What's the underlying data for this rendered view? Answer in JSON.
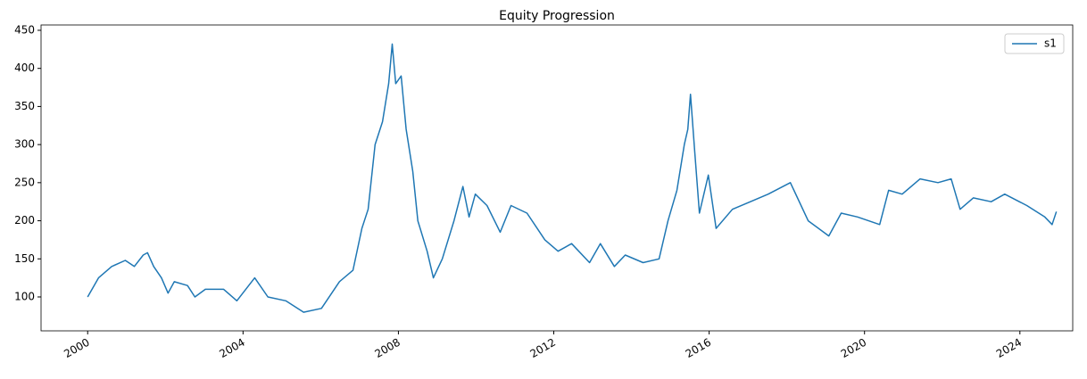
{
  "chart_data": {
    "type": "line",
    "title": "Equity Progression",
    "x": [
      2000.0,
      2000.28,
      2000.62,
      2000.97,
      2001.2,
      2001.43,
      2001.54,
      2001.7,
      2001.9,
      2002.07,
      2002.23,
      2002.57,
      2002.76,
      2003.03,
      2003.5,
      2003.84,
      2004.3,
      2004.64,
      2005.1,
      2005.56,
      2006.02,
      2006.48,
      2006.83,
      2007.06,
      2007.22,
      2007.4,
      2007.59,
      2007.75,
      2007.84,
      2007.93,
      2008.07,
      2008.2,
      2008.37,
      2008.5,
      2008.74,
      2008.9,
      2009.13,
      2009.43,
      2009.66,
      2009.82,
      2009.98,
      2010.28,
      2010.62,
      2010.9,
      2011.31,
      2011.77,
      2012.11,
      2012.46,
      2012.92,
      2013.2,
      2013.56,
      2013.84,
      2014.3,
      2014.71,
      2014.94,
      2015.17,
      2015.36,
      2015.45,
      2015.52,
      2015.63,
      2015.75,
      2015.98,
      2016.18,
      2016.6,
      2017.06,
      2017.52,
      2018.09,
      2018.55,
      2019.08,
      2019.4,
      2019.82,
      2020.39,
      2020.62,
      2020.97,
      2021.43,
      2021.89,
      2022.23,
      2022.46,
      2022.8,
      2023.26,
      2023.61,
      2024.18,
      2024.64,
      2024.83,
      2024.94
    ],
    "series": [
      {
        "name": "s1",
        "color": "#1f77b4",
        "values": [
          100,
          125,
          140,
          148,
          140,
          155,
          158,
          140,
          125,
          105,
          120,
          115,
          100,
          110,
          110,
          95,
          125,
          100,
          95,
          80,
          85,
          120,
          135,
          190,
          215,
          300,
          330,
          380,
          432,
          380,
          390,
          320,
          265,
          200,
          160,
          125,
          150,
          200,
          245,
          205,
          235,
          220,
          185,
          220,
          210,
          175,
          160,
          170,
          145,
          170,
          140,
          155,
          145,
          150,
          200,
          240,
          300,
          320,
          366,
          290,
          210,
          260,
          190,
          215,
          225,
          235,
          250,
          200,
          180,
          210,
          205,
          195,
          240,
          235,
          255,
          250,
          255,
          215,
          230,
          225,
          235,
          220,
          205,
          195,
          212
        ]
      }
    ],
    "xlim": [
      1998.8,
      2025.36
    ],
    "ylim": [
      55.5,
      457
    ],
    "xticks": [
      2000,
      2004,
      2008,
      2012,
      2016,
      2020,
      2024
    ],
    "yticks": [
      100,
      150,
      200,
      250,
      300,
      350,
      400,
      450
    ],
    "legend": "upper right"
  }
}
